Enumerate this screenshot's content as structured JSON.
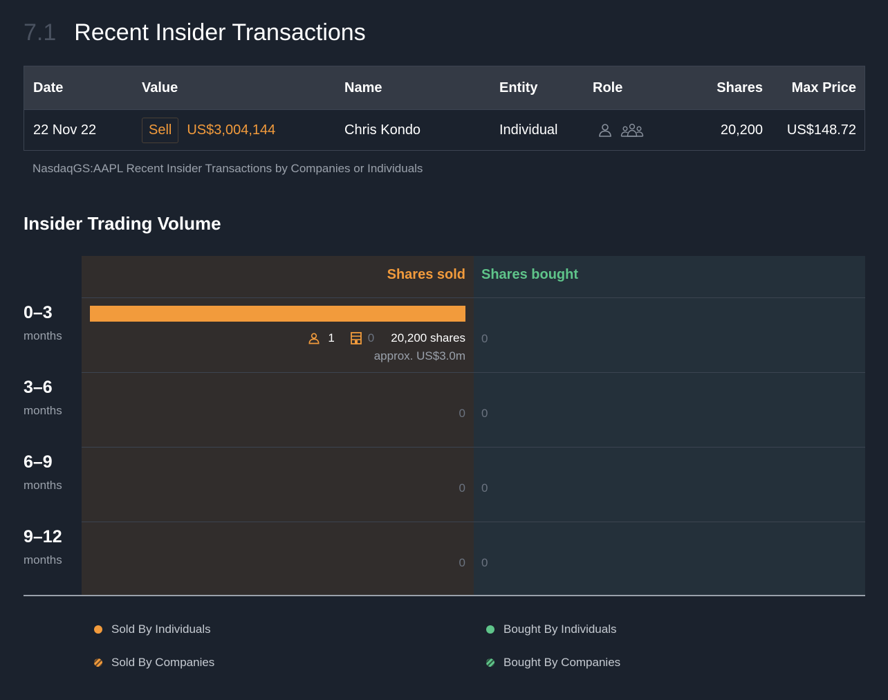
{
  "section": {
    "number": "7.1",
    "title": "Recent Insider Transactions"
  },
  "table": {
    "headers": {
      "date": "Date",
      "value": "Value",
      "name": "Name",
      "entity": "Entity",
      "role": "Role",
      "shares": "Shares",
      "max_price": "Max Price"
    },
    "rows": [
      {
        "date": "22 Nov 22",
        "type": "Sell",
        "value": "US$3,004,144",
        "name": "Chris Kondo",
        "entity": "Individual",
        "role_icons": [
          "person-icon",
          "group-icon"
        ],
        "shares": "20,200",
        "max_price": "US$148.72"
      }
    ],
    "caption": "NasdaqGS:AAPL Recent Insider Transactions by Companies or Individuals"
  },
  "volume": {
    "title": "Insider Trading Volume",
    "sold_header": "Shares sold",
    "bought_header": "Shares bought",
    "periods": [
      {
        "range": "0–3",
        "unit": "months",
        "sold": {
          "individuals": "1",
          "companies": "0",
          "shares": "20,200 shares",
          "approx": "approx. US$3.0m",
          "fraction": 1.0
        },
        "bought": "0"
      },
      {
        "range": "3–6",
        "unit": "months",
        "sold_value": "0",
        "bought": "0"
      },
      {
        "range": "6–9",
        "unit": "months",
        "sold_value": "0",
        "bought": "0"
      },
      {
        "range": "9–12",
        "unit": "months",
        "sold_value": "0",
        "bought": "0"
      }
    ],
    "legend": [
      {
        "label": "Sold By Individuals",
        "color": "#f29b3c",
        "style": "solid"
      },
      {
        "label": "Bought By Individuals",
        "color": "#5fc48a",
        "style": "solid"
      },
      {
        "label": "Sold By Companies",
        "color": "#f29b3c",
        "style": "striped"
      },
      {
        "label": "Bought By Companies",
        "color": "#5fc48a",
        "style": "striped"
      }
    ]
  },
  "colors": {
    "sell": "#f29b3c",
    "buy": "#5fc48a",
    "background": "#1b222d"
  }
}
